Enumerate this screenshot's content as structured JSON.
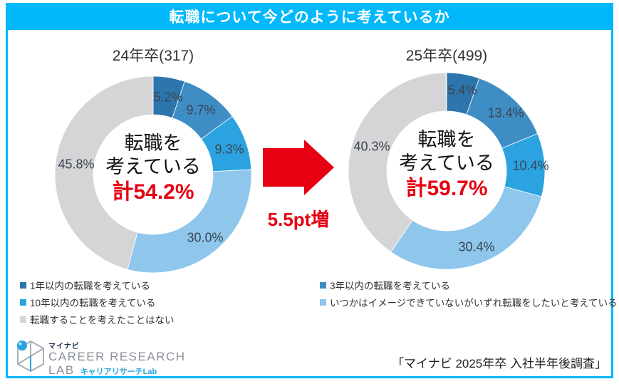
{
  "header": {
    "title": "転職について今どのように考えているか"
  },
  "chart_data": [
    {
      "type": "pie",
      "variant": "donut",
      "title": "24年卒(317)",
      "categories": [
        "1年以内の転職を考えている",
        "3年以内の転職を考えている",
        "10年以内の転職を考えている",
        "いつかはイメージできていないがいずれ転職をしたいと考えている",
        "転職することを考えたことはない"
      ],
      "values": [
        5.2,
        9.7,
        9.3,
        30.0,
        45.8
      ],
      "value_labels": [
        "5.2%",
        "9.7%",
        "9.3%",
        "30.0%",
        "45.8%"
      ],
      "colors": [
        "#2d76ad",
        "#3e8dc5",
        "#2aa3e0",
        "#8ec6ec",
        "#d5d5d7"
      ],
      "center": {
        "line1": "転職を",
        "line2": "考えている",
        "total": "計54.2%"
      },
      "considering_total_pct": 54.2,
      "start_angle_deg": -90,
      "direction": "clockwise"
    },
    {
      "type": "pie",
      "variant": "donut",
      "title": "25年卒(499)",
      "categories": [
        "1年以内の転職を考えている",
        "3年以内の転職を考えている",
        "10年以内の転職を考えている",
        "いつかはイメージできていないがいずれ転職をしたいと考えている",
        "転職することを考えたことはない"
      ],
      "values": [
        5.4,
        13.4,
        10.4,
        30.4,
        40.3
      ],
      "value_labels": [
        "5.4%",
        "13.4%",
        "10.4%",
        "30.4%",
        "40.3%"
      ],
      "colors": [
        "#2d76ad",
        "#3e8dc5",
        "#2aa3e0",
        "#8ec6ec",
        "#d5d5d7"
      ],
      "center": {
        "line1": "転職を",
        "line2": "考えている",
        "total": "計59.7%"
      },
      "considering_total_pct": 59.7,
      "start_angle_deg": -90,
      "direction": "clockwise"
    }
  ],
  "comparison": {
    "arrow_label": "5.5pt増",
    "arrow_color": "#e60012"
  },
  "footer": {
    "logo": {
      "brand": "マイナビ",
      "line1": "CAREER RESEARCH",
      "line2": "LAB",
      "subtitle": "キャリアリサーチLab"
    },
    "source": "「マイナビ 2025年卒 入社半年後調査」"
  },
  "colors": {
    "header_bg": "#00b8fa",
    "frame_border": "#00b8fa",
    "accent_red": "#e60012",
    "label_text": "#3b4450"
  }
}
